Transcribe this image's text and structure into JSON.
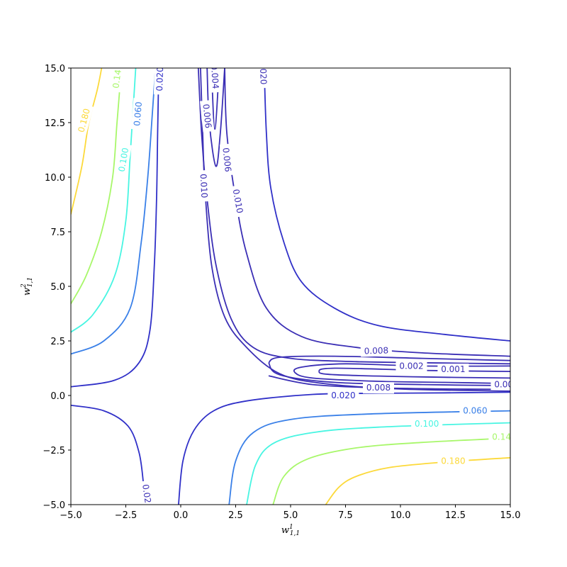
{
  "chart_data": {
    "type": "contour",
    "xlabel": {
      "base": "w",
      "sub": "1,1",
      "sup": "1"
    },
    "ylabel": {
      "base": "w",
      "sub": "1,1",
      "sup": "2"
    },
    "xlim": [
      -5,
      15
    ],
    "ylim": [
      -5,
      15
    ],
    "xticks": [
      "−5.0",
      "−2.5",
      "0.0",
      "2.5",
      "5.0",
      "7.5",
      "10.0",
      "12.5",
      "15.0"
    ],
    "yticks": [
      "−5.0",
      "−2.5",
      "0.0",
      "2.5",
      "5.0",
      "7.5",
      "10.0",
      "12.5",
      "15.0"
    ],
    "xtick_values": [
      -5,
      -2.5,
      0,
      2.5,
      5,
      7.5,
      10,
      12.5,
      15
    ],
    "ytick_values": [
      -5,
      -2.5,
      0,
      2.5,
      5,
      7.5,
      10,
      12.5,
      15
    ],
    "grid": false,
    "levels": [
      {
        "value": "0.001",
        "color": "#3b2fb5"
      },
      {
        "value": "0.002",
        "color": "#3b2fb5"
      },
      {
        "value": "0.004",
        "color": "#3b2fb5"
      },
      {
        "value": "0.006",
        "color": "#3b2fb5"
      },
      {
        "value": "0.008",
        "color": "#3b2fb5"
      },
      {
        "value": "0.010",
        "color": "#3b2fb5"
      },
      {
        "value": "0.020",
        "color": "#3030c8"
      },
      {
        "value": "0.060",
        "color": "#3a80e8"
      },
      {
        "value": "0.100",
        "color": "#48f5e2"
      },
      {
        "value": "0.140",
        "color": "#a8f76a"
      },
      {
        "value": "0.180",
        "color": "#fcd93a"
      }
    ],
    "contours": [
      {
        "level": "0.180",
        "color": "#fcd93a",
        "points": [
          [
            -5.0,
            8.3
          ],
          [
            -4.5,
            10.5
          ],
          [
            -4.2,
            12.4
          ],
          [
            -3.8,
            14.0
          ],
          [
            -3.6,
            15.0
          ]
        ]
      },
      {
        "level": "0.180",
        "color": "#fcd93a",
        "points": [
          [
            6.6,
            -5.0
          ],
          [
            7.2,
            -4.2
          ],
          [
            8.0,
            -3.7
          ],
          [
            9.5,
            -3.3
          ],
          [
            12.0,
            -3.05
          ],
          [
            15.0,
            -2.85
          ]
        ]
      },
      {
        "level": "0.140",
        "color": "#a8f76a",
        "points": [
          [
            -5.0,
            4.2
          ],
          [
            -4.3,
            5.5
          ],
          [
            -3.6,
            7.5
          ],
          [
            -3.1,
            10.0
          ],
          [
            -2.9,
            12.5
          ],
          [
            -2.7,
            15.0
          ]
        ]
      },
      {
        "level": "0.140",
        "color": "#a8f76a",
        "points": [
          [
            4.2,
            -5.0
          ],
          [
            4.7,
            -3.7
          ],
          [
            5.8,
            -2.9
          ],
          [
            8.0,
            -2.4
          ],
          [
            11.0,
            -2.15
          ],
          [
            15.0,
            -1.95
          ]
        ]
      },
      {
        "level": "0.100",
        "color": "#48f5e2",
        "points": [
          [
            -5.0,
            2.9
          ],
          [
            -4.0,
            3.7
          ],
          [
            -3.0,
            5.5
          ],
          [
            -2.5,
            8.0
          ],
          [
            -2.3,
            11.0
          ],
          [
            -2.05,
            15.0
          ]
        ]
      },
      {
        "level": "0.100",
        "color": "#48f5e2",
        "points": [
          [
            3.0,
            -5.0
          ],
          [
            3.4,
            -3.2
          ],
          [
            4.2,
            -2.2
          ],
          [
            6.0,
            -1.7
          ],
          [
            9.0,
            -1.45
          ],
          [
            15.0,
            -1.25
          ]
        ]
      },
      {
        "level": "0.060",
        "color": "#3a80e8",
        "points": [
          [
            -5.0,
            1.9
          ],
          [
            -3.5,
            2.5
          ],
          [
            -2.3,
            4.0
          ],
          [
            -1.8,
            7.0
          ],
          [
            -1.5,
            10.0
          ],
          [
            -1.3,
            12.8
          ],
          [
            -1.15,
            15.0
          ]
        ]
      },
      {
        "level": "0.060",
        "color": "#3a80e8",
        "points": [
          [
            2.2,
            -5.0
          ],
          [
            2.5,
            -3.0
          ],
          [
            3.3,
            -1.7
          ],
          [
            5.0,
            -1.1
          ],
          [
            8.5,
            -0.85
          ],
          [
            15.0,
            -0.7
          ]
        ]
      },
      {
        "level": "0.020",
        "color": "#3030c8",
        "points": [
          [
            -5.0,
            0.4
          ],
          [
            -3.0,
            0.7
          ],
          [
            -1.9,
            1.5
          ],
          [
            -1.4,
            3.0
          ],
          [
            -1.2,
            6.0
          ],
          [
            -1.1,
            9.0
          ],
          [
            -1.05,
            12.0
          ],
          [
            -1.0,
            15.0
          ]
        ]
      },
      {
        "level": "0.020",
        "color": "#3030c8",
        "points": [
          [
            -5.0,
            -0.45
          ],
          [
            -3.5,
            -0.7
          ],
          [
            -2.4,
            -1.4
          ],
          [
            -1.9,
            -2.6
          ],
          [
            -1.7,
            -4.0
          ],
          [
            -1.6,
            -5.0
          ]
        ]
      },
      {
        "level": "0.020",
        "color": "#3030c8",
        "points": [
          [
            -0.1,
            -5.0
          ],
          [
            0.1,
            -3.0
          ],
          [
            0.6,
            -1.6
          ],
          [
            1.5,
            -0.7
          ],
          [
            3.0,
            -0.25
          ],
          [
            6.0,
            0.05
          ],
          [
            9.0,
            0.1
          ],
          [
            12.0,
            0.12
          ],
          [
            15.0,
            0.15
          ]
        ]
      },
      {
        "level": "0.020",
        "color": "#3030c8",
        "points": [
          [
            3.8,
            15.0
          ],
          [
            3.9,
            12.0
          ],
          [
            4.1,
            9.5
          ],
          [
            4.7,
            7.0
          ],
          [
            5.5,
            5.2
          ],
          [
            7.0,
            4.0
          ],
          [
            9.0,
            3.2
          ],
          [
            12.0,
            2.8
          ],
          [
            15.0,
            2.5
          ]
        ]
      },
      {
        "level": "0.010",
        "color": "#3b2fb5",
        "points": [
          [
            0.9,
            15.0
          ],
          [
            1.0,
            12.0
          ],
          [
            1.1,
            9.5
          ],
          [
            1.4,
            6.0
          ],
          [
            2.0,
            3.6
          ],
          [
            3.0,
            2.2
          ],
          [
            4.5,
            1.0
          ],
          [
            6.5,
            0.55
          ],
          [
            10.0,
            0.3
          ],
          [
            15.0,
            0.2
          ]
        ]
      },
      {
        "level": "0.010",
        "color": "#3b2fb5",
        "points": [
          [
            2.0,
            15.0
          ],
          [
            2.1,
            12.0
          ],
          [
            2.5,
            9.0
          ],
          [
            3.0,
            6.5
          ],
          [
            3.9,
            4.0
          ],
          [
            5.5,
            2.7
          ],
          [
            8.0,
            2.2
          ],
          [
            11.0,
            1.95
          ],
          [
            15.0,
            1.8
          ]
        ]
      },
      {
        "level": "0.008",
        "color": "#3b2fb5",
        "points": [
          [
            0.8,
            15.0
          ],
          [
            0.95,
            12.0
          ],
          [
            1.2,
            9.0
          ],
          [
            1.6,
            6.0
          ],
          [
            2.3,
            3.5
          ],
          [
            3.3,
            2.2
          ],
          [
            5.0,
            1.7
          ],
          [
            8.0,
            1.55
          ],
          [
            11.0,
            1.5
          ],
          [
            15.0,
            1.45
          ]
        ]
      },
      {
        "level": "0.008",
        "color": "#3b2fb5",
        "points": [
          [
            4.0,
            0.9
          ],
          [
            6.0,
            0.5
          ],
          [
            9.0,
            0.35
          ],
          [
            12.0,
            0.3
          ],
          [
            15.0,
            0.28
          ]
        ]
      },
      {
        "level": "0.006",
        "color": "#3b2fb5",
        "points": [
          [
            1.2,
            15.0
          ],
          [
            1.3,
            12.5
          ],
          [
            1.6,
            10.5
          ],
          [
            1.8,
            12.0
          ],
          [
            2.0,
            15.0
          ]
        ]
      },
      {
        "level": "0.006",
        "color": "#3b2fb5",
        "points": [
          [
            4.0,
            1.5
          ],
          [
            4.5,
            1.75
          ],
          [
            7.0,
            1.8
          ],
          [
            11.0,
            1.7
          ],
          [
            15.0,
            1.6
          ]
        ]
      },
      {
        "level": "0.006",
        "color": "#3b2fb5",
        "points": [
          [
            4.0,
            1.5
          ],
          [
            4.5,
            0.95
          ],
          [
            7.0,
            0.6
          ],
          [
            11.0,
            0.5
          ],
          [
            15.0,
            0.45
          ]
        ]
      },
      {
        "level": "0.004",
        "color": "#3b2fb5",
        "points": [
          [
            1.4,
            15.0
          ],
          [
            1.55,
            12.2
          ],
          [
            1.75,
            15.0
          ]
        ]
      },
      {
        "level": "0.002",
        "color": "#3b2fb5",
        "points": [
          [
            15.0,
            1.35
          ],
          [
            11.0,
            1.35
          ],
          [
            7.5,
            1.45
          ],
          [
            5.5,
            1.3
          ],
          [
            5.2,
            1.05
          ],
          [
            6.0,
            0.8
          ],
          [
            9.0,
            0.65
          ],
          [
            12.0,
            0.6
          ],
          [
            15.0,
            0.55
          ]
        ]
      },
      {
        "level": "0.001",
        "color": "#3b2fb5",
        "points": [
          [
            15.0,
            1.1
          ],
          [
            11.0,
            1.15
          ],
          [
            7.0,
            1.25
          ],
          [
            6.3,
            1.1
          ],
          [
            7.0,
            0.95
          ],
          [
            11.0,
            0.85
          ],
          [
            15.0,
            0.8
          ]
        ]
      }
    ],
    "labels": [
      {
        "text": "0.180",
        "x": -4.4,
        "y": 12.6,
        "rot": -75,
        "color": "#fcd93a"
      },
      {
        "text": "0.14",
        "x": -2.9,
        "y": 14.5,
        "rot": -82,
        "color": "#a8f76a"
      },
      {
        "text": "0.100",
        "x": -2.6,
        "y": 10.8,
        "rot": -80,
        "color": "#48f5e2"
      },
      {
        "text": "0.060",
        "x": -1.95,
        "y": 12.9,
        "rot": -85,
        "color": "#3a80e8"
      },
      {
        "text": "0.020",
        "x": -0.95,
        "y": 14.5,
        "rot": -88,
        "color": "#3030c8"
      },
      {
        "text": "0.004",
        "x": 1.55,
        "y": 14.6,
        "rot": 86,
        "color": "#3b2fb5"
      },
      {
        "text": "0.006",
        "x": 1.2,
        "y": 12.8,
        "rot": 84,
        "color": "#3b2fb5"
      },
      {
        "text": "0.006",
        "x": 2.1,
        "y": 10.8,
        "rot": 84,
        "color": "#3b2fb5"
      },
      {
        "text": "0.010",
        "x": 1.05,
        "y": 9.6,
        "rot": 87,
        "color": "#3b2fb5"
      },
      {
        "text": "0.010",
        "x": 2.6,
        "y": 8.9,
        "rot": 80,
        "color": "#3b2fb5"
      },
      {
        "text": "0.020",
        "x": 3.75,
        "y": 14.8,
        "rot": 88,
        "color": "#3b2fb5"
      },
      {
        "text": "0.008",
        "x": 8.9,
        "y": 2.05,
        "rot": -2,
        "color": "#3b2fb5"
      },
      {
        "text": "0.002",
        "x": 10.5,
        "y": 1.35,
        "rot": 0,
        "color": "#3b2fb5"
      },
      {
        "text": "0.001",
        "x": 12.4,
        "y": 1.2,
        "rot": 0,
        "color": "#3b2fb5"
      },
      {
        "text": "0.008",
        "x": 9.0,
        "y": 0.35,
        "rot": 0,
        "color": "#3b2fb5"
      },
      {
        "text": "0.00",
        "x": 14.7,
        "y": 0.5,
        "rot": 0,
        "color": "#3b2fb5"
      },
      {
        "text": "0.020",
        "x": 7.4,
        "y": 0.0,
        "rot": 0,
        "color": "#3030c8"
      },
      {
        "text": "0.060",
        "x": 13.4,
        "y": -0.7,
        "rot": 0,
        "color": "#3a80e8"
      },
      {
        "text": "0.100",
        "x": 11.2,
        "y": -1.3,
        "rot": 0,
        "color": "#48f5e2"
      },
      {
        "text": "0.14",
        "x": 14.6,
        "y": -1.9,
        "rot": 0,
        "color": "#a8f76a"
      },
      {
        "text": "0.180",
        "x": 12.4,
        "y": -3.0,
        "rot": 0,
        "color": "#fcd93a"
      },
      {
        "text": "0.02",
        "x": -1.55,
        "y": -4.5,
        "rot": 82,
        "color": "#3b2fb5"
      }
    ]
  }
}
